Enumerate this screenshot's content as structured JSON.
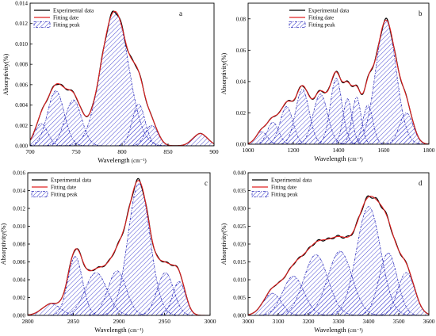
{
  "chart_data": [
    {
      "panel": "a",
      "type": "area",
      "xlabel": "Wavelength",
      "xunit": "(cm⁻¹)",
      "ylabel": "Absorptivity(%)",
      "xlim": [
        700,
        900
      ],
      "ylim": [
        0,
        0.014
      ],
      "xticks": [
        700,
        750,
        800,
        850,
        900
      ],
      "yticks": [
        0.0,
        0.002,
        0.004,
        0.006,
        0.008,
        0.01,
        0.012,
        0.014
      ],
      "ytick_decimals": 3,
      "legend_position": "top-left",
      "legend": [
        "Experimental data",
        "Fitting date",
        "Fitting peak"
      ],
      "peaks": [
        {
          "center": 712,
          "height": 0.0022,
          "width": 7
        },
        {
          "center": 728,
          "height": 0.0054,
          "width": 9
        },
        {
          "center": 747,
          "height": 0.0045,
          "width": 9
        },
        {
          "center": 792,
          "height": 0.0132,
          "width": 15
        },
        {
          "center": 818,
          "height": 0.0041,
          "width": 7
        },
        {
          "center": 832,
          "height": 0.002,
          "width": 7
        },
        {
          "center": 885,
          "height": 0.0012,
          "width": 8
        }
      ],
      "baseline": 0.0
    },
    {
      "panel": "b",
      "type": "area",
      "xlabel": "Wavelength",
      "xunit": "(cm⁻¹)",
      "ylabel": "Absorptivity(%)",
      "xlim": [
        1000,
        1800
      ],
      "ylim": [
        0,
        0.09
      ],
      "xticks": [
        1000,
        1200,
        1400,
        1600,
        1800
      ],
      "yticks": [
        0.0,
        0.02,
        0.04,
        0.06,
        0.08
      ],
      "ytick_decimals": 2,
      "legend_position": "top-center",
      "legend": [
        "Experimental data",
        "Fitting date",
        "Fitting peak"
      ],
      "peaks": [
        {
          "center": 1060,
          "height": 0.008,
          "width": 25
        },
        {
          "center": 1110,
          "height": 0.014,
          "width": 25
        },
        {
          "center": 1170,
          "height": 0.024,
          "width": 28
        },
        {
          "center": 1240,
          "height": 0.035,
          "width": 30
        },
        {
          "center": 1320,
          "height": 0.032,
          "width": 32
        },
        {
          "center": 1390,
          "height": 0.042,
          "width": 26
        },
        {
          "center": 1440,
          "height": 0.029,
          "width": 20
        },
        {
          "center": 1480,
          "height": 0.03,
          "width": 20
        },
        {
          "center": 1530,
          "height": 0.025,
          "width": 22
        },
        {
          "center": 1610,
          "height": 0.079,
          "width": 45
        },
        {
          "center": 1700,
          "height": 0.02,
          "width": 30
        }
      ],
      "baseline": 0.0
    },
    {
      "panel": "c",
      "type": "area",
      "xlabel": "Wavelength",
      "xunit": "(cm⁻¹)",
      "ylabel": "Absorptivity(%)",
      "xlim": [
        2800,
        3000
      ],
      "ylim": [
        0,
        0.016
      ],
      "xticks": [
        2800,
        2850,
        2900,
        2950,
        3000
      ],
      "yticks": [
        0.0,
        0.002,
        0.004,
        0.006,
        0.008,
        0.01,
        0.012,
        0.014,
        0.016
      ],
      "ytick_decimals": 3,
      "legend_position": "top-left",
      "legend": [
        "Experimental data",
        "Fitting date",
        "Fitting peak"
      ],
      "peaks": [
        {
          "center": 2826,
          "height": 0.0013,
          "width": 10
        },
        {
          "center": 2852,
          "height": 0.0066,
          "width": 8
        },
        {
          "center": 2875,
          "height": 0.0048,
          "width": 12
        },
        {
          "center": 2898,
          "height": 0.005,
          "width": 10
        },
        {
          "center": 2922,
          "height": 0.0148,
          "width": 12
        },
        {
          "center": 2951,
          "height": 0.0048,
          "width": 9
        },
        {
          "center": 2966,
          "height": 0.0038,
          "width": 7
        }
      ],
      "baseline": 0.0
    },
    {
      "panel": "d",
      "type": "area",
      "xlabel": "Wavelength",
      "xunit": "(cm⁻¹)",
      "ylabel": "Absorptivity(%)",
      "xlim": [
        3000,
        3600
      ],
      "ylim": [
        0,
        0.04
      ],
      "xticks": [
        3000,
        3100,
        3200,
        3300,
        3400,
        3500,
        3600
      ],
      "yticks": [
        0.0,
        0.005,
        0.01,
        0.015,
        0.02,
        0.025,
        0.03,
        0.035,
        0.04
      ],
      "ytick_decimals": 3,
      "legend_position": "top-left",
      "legend": [
        "Experimental data",
        "Fitting date",
        "Fitting peak"
      ],
      "peaks": [
        {
          "center": 3080,
          "height": 0.0062,
          "width": 30
        },
        {
          "center": 3150,
          "height": 0.011,
          "width": 35
        },
        {
          "center": 3225,
          "height": 0.017,
          "width": 40
        },
        {
          "center": 3305,
          "height": 0.018,
          "width": 40
        },
        {
          "center": 3400,
          "height": 0.0305,
          "width": 40
        },
        {
          "center": 3465,
          "height": 0.0175,
          "width": 30
        },
        {
          "center": 3525,
          "height": 0.012,
          "width": 28
        }
      ],
      "baseline": 0.0
    }
  ],
  "colors": {
    "experimental": "#000000",
    "fitting": "#e02020",
    "peak": "#3333bb"
  }
}
